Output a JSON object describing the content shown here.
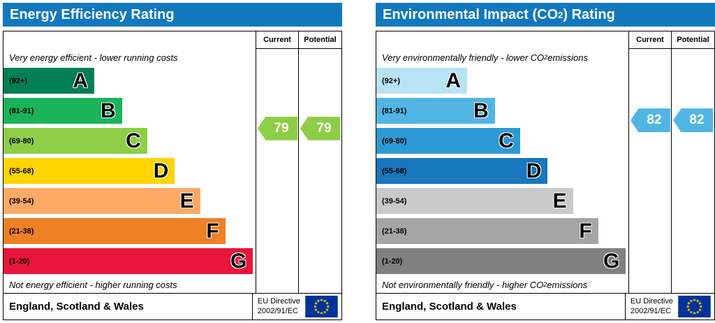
{
  "theme": {
    "header_blue": "#1278be",
    "eu_flag_background": "#003399",
    "eu_flag_stars": "#ffcc00"
  },
  "panels": [
    {
      "title": {
        "pre": "Energy Efficiency Rating",
        "sub": "",
        "post": ""
      },
      "columns": {
        "current": "Current",
        "potential": "Potential"
      },
      "top_note": {
        "pre": "Very energy efficient - lower running costs",
        "sub": "",
        "post": ""
      },
      "bottom_note": {
        "pre": "Not energy efficient - higher running costs",
        "sub": "",
        "post": ""
      },
      "bands": [
        {
          "range": "(92+)",
          "letter": "A",
          "lo": 92,
          "hi": 100,
          "color": "#008054",
          "width_pct": 36
        },
        {
          "range": "(81-91)",
          "letter": "B",
          "lo": 81,
          "hi": 91,
          "color": "#19b459",
          "width_pct": 47
        },
        {
          "range": "(69-80)",
          "letter": "C",
          "lo": 69,
          "hi": 80,
          "color": "#8dce46",
          "width_pct": 57
        },
        {
          "range": "(55-68)",
          "letter": "D",
          "lo": 55,
          "hi": 68,
          "color": "#ffd500",
          "width_pct": 68
        },
        {
          "range": "(39-54)",
          "letter": "E",
          "lo": 39,
          "hi": 54,
          "color": "#fcaa65",
          "width_pct": 78
        },
        {
          "range": "(21-38)",
          "letter": "F",
          "lo": 21,
          "hi": 38,
          "color": "#ef8023",
          "width_pct": 88
        },
        {
          "range": "(1-20)",
          "letter": "G",
          "lo": 1,
          "hi": 20,
          "color": "#e9153b",
          "width_pct": 99
        }
      ],
      "current": {
        "value": "79",
        "color": "#8dce46"
      },
      "potential": {
        "value": "79",
        "color": "#8dce46"
      },
      "footer": {
        "region": "England, Scotland & Wales",
        "directive": [
          "EU Directive",
          "2002/91/EC"
        ]
      }
    },
    {
      "title": {
        "pre": "Environmental Impact (CO",
        "sub": "2",
        "post": ") Rating"
      },
      "columns": {
        "current": "Current",
        "potential": "Potential"
      },
      "top_note": {
        "pre": "Very environmentally friendly - lower CO",
        "sub": "2",
        "post": " emissions"
      },
      "bottom_note": {
        "pre": "Not environmentally friendly - higher CO",
        "sub": "2",
        "post": " emissions"
      },
      "bands": [
        {
          "range": "(92+)",
          "letter": "A",
          "lo": 92,
          "hi": 100,
          "color": "#b8e3f5",
          "width_pct": 36
        },
        {
          "range": "(81-91)",
          "letter": "B",
          "lo": 81,
          "hi": 91,
          "color": "#51b5e4",
          "width_pct": 47
        },
        {
          "range": "(69-80)",
          "letter": "C",
          "lo": 69,
          "hi": 80,
          "color": "#2c9ad5",
          "width_pct": 57
        },
        {
          "range": "(55-68)",
          "letter": "D",
          "lo": 55,
          "hi": 68,
          "color": "#1877bd",
          "width_pct": 68
        },
        {
          "range": "(39-54)",
          "letter": "E",
          "lo": 39,
          "hi": 54,
          "color": "#c9c9c9",
          "width_pct": 78
        },
        {
          "range": "(21-38)",
          "letter": "F",
          "lo": 21,
          "hi": 38,
          "color": "#a5a5a5",
          "width_pct": 88
        },
        {
          "range": "(1-20)",
          "letter": "G",
          "lo": 1,
          "hi": 20,
          "color": "#808080",
          "width_pct": 99
        }
      ],
      "current": {
        "value": "82",
        "color": "#51b5e4"
      },
      "potential": {
        "value": "82",
        "color": "#51b5e4"
      },
      "footer": {
        "region": "England, Scotland & Wales",
        "directive": [
          "EU Directive",
          "2002/91/EC"
        ]
      }
    }
  ],
  "chart_data": [
    {
      "type": "bar",
      "title": "Energy Efficiency Rating",
      "categories": [
        "A (92+)",
        "B (81-91)",
        "C (69-80)",
        "D (55-68)",
        "E (39-54)",
        "F (21-38)",
        "G (1-20)"
      ],
      "band_colors": [
        "#008054",
        "#19b459",
        "#8dce46",
        "#ffd500",
        "#fcaa65",
        "#ef8023",
        "#e9153b"
      ],
      "band_relative_widths_pct": [
        36,
        47,
        57,
        68,
        78,
        88,
        99
      ],
      "scale": [
        1,
        100
      ],
      "current": 79,
      "potential": 79,
      "current_band": "C",
      "potential_band": "C",
      "top_note": "Very energy efficient - lower running costs",
      "bottom_note": "Not energy efficient - higher running costs",
      "footer": "England, Scotland & Wales | EU Directive 2002/91/EC"
    },
    {
      "type": "bar",
      "title": "Environmental Impact (CO2) Rating",
      "categories": [
        "A (92+)",
        "B (81-91)",
        "C (69-80)",
        "D (55-68)",
        "E (39-54)",
        "F (21-38)",
        "G (1-20)"
      ],
      "band_colors": [
        "#b8e3f5",
        "#51b5e4",
        "#2c9ad5",
        "#1877bd",
        "#c9c9c9",
        "#a5a5a5",
        "#808080"
      ],
      "band_relative_widths_pct": [
        36,
        47,
        57,
        68,
        78,
        88,
        99
      ],
      "scale": [
        1,
        100
      ],
      "current": 82,
      "potential": 82,
      "current_band": "B",
      "potential_band": "B",
      "top_note": "Very environmentally friendly - lower CO2 emissions",
      "bottom_note": "Not environmentally friendly - higher CO2 emissions",
      "footer": "England, Scotland & Wales | EU Directive 2002/91/EC"
    }
  ]
}
